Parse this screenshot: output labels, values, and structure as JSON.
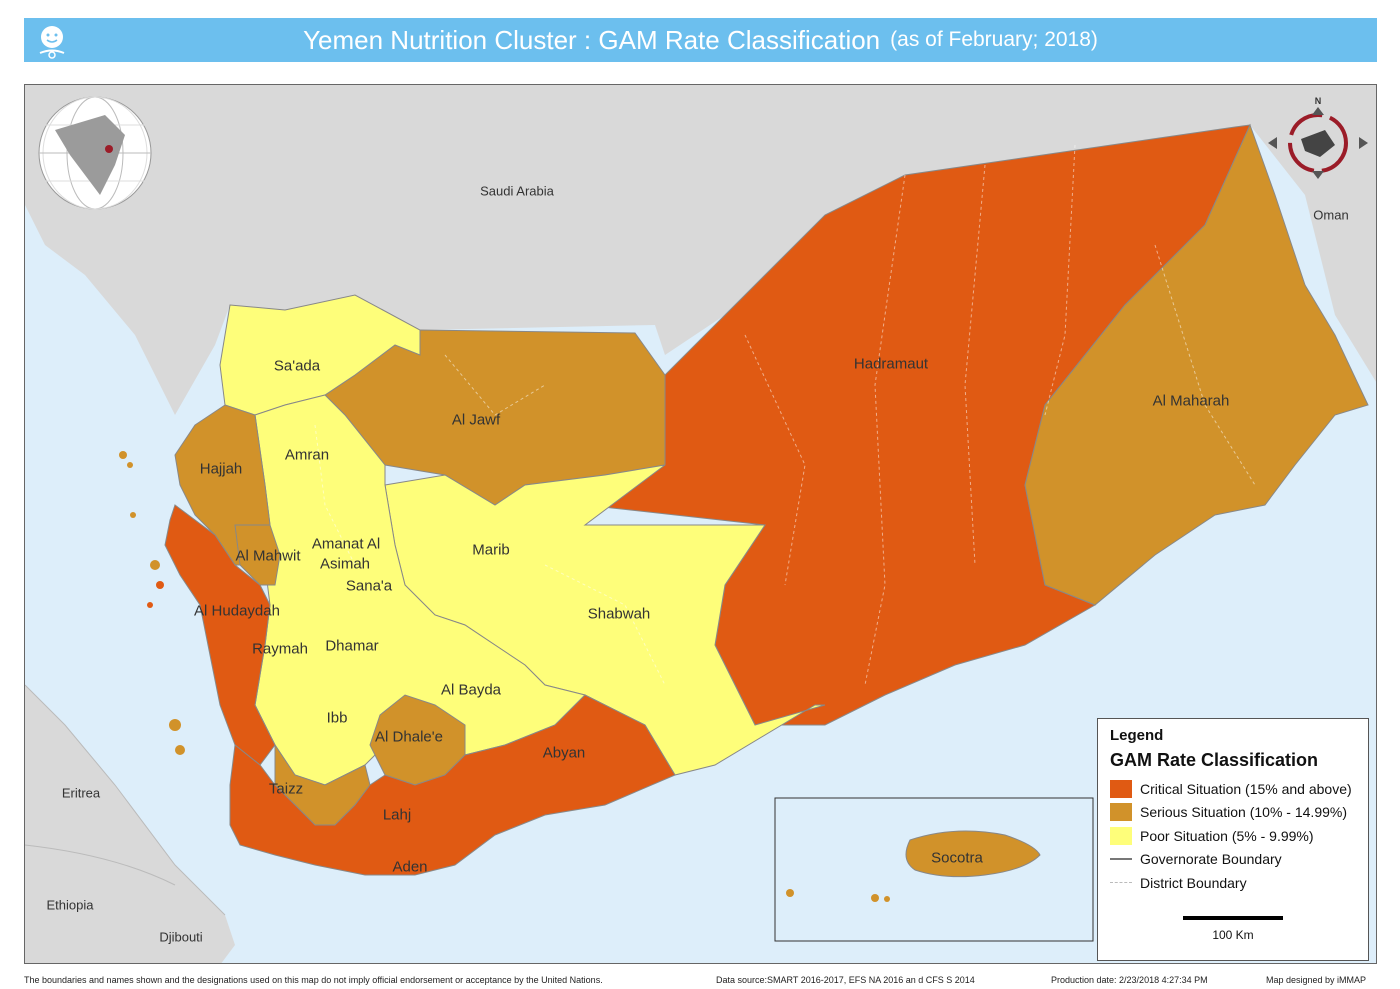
{
  "header": {
    "title": "Yemen Nutrition Cluster : GAM Rate Classification",
    "subtitle": "(as of February; 2018)"
  },
  "colors": {
    "critical": "#e05a13",
    "serious": "#d1922a",
    "poor": "#fefe7a",
    "land": "#d9d9d9",
    "sea": "#ddeefa",
    "title_bar": "#6cbfee"
  },
  "map": {
    "countries": {
      "saudi": "Saudi Arabia",
      "oman": "Oman",
      "eritrea": "Eritrea",
      "ethiopia": "Ethiopia",
      "djibouti": "Djibouti"
    },
    "compass": "N",
    "governorates": [
      {
        "name": "Sa'ada",
        "class": "poor"
      },
      {
        "name": "Al Jawf",
        "class": "serious"
      },
      {
        "name": "Hadramaut",
        "class": "critical"
      },
      {
        "name": "Al Maharah",
        "class": "serious"
      },
      {
        "name": "Hajjah",
        "class": "serious"
      },
      {
        "name": "Amran",
        "class": "poor"
      },
      {
        "name": "Marib",
        "class": "poor"
      },
      {
        "name": "Al Mahwit",
        "class": "serious"
      },
      {
        "name": "Amanat Al",
        "class": "poor"
      },
      {
        "name": "Asimah",
        "class": "poor"
      },
      {
        "name": "Sana'a",
        "class": "poor"
      },
      {
        "name": "Shabwah",
        "class": "poor"
      },
      {
        "name": "Al Hudaydah",
        "class": "critical"
      },
      {
        "name": "Raymah",
        "class": "poor"
      },
      {
        "name": "Dhamar",
        "class": "poor"
      },
      {
        "name": "Al Bayda",
        "class": "poor"
      },
      {
        "name": "Ibb",
        "class": "poor"
      },
      {
        "name": "Al Dhale'e",
        "class": "serious"
      },
      {
        "name": "Abyan",
        "class": "critical"
      },
      {
        "name": "Taizz",
        "class": "serious"
      },
      {
        "name": "Lahj",
        "class": "critical"
      },
      {
        "name": "Aden",
        "class": "critical"
      },
      {
        "name": "Socotra",
        "class": "serious"
      }
    ]
  },
  "legend": {
    "title": "Legend",
    "subtitle": "GAM Rate Classification",
    "items": [
      {
        "label": "Critical Situation (15% and above)",
        "color": "#e05a13"
      },
      {
        "label": "Serious Situation (10% - 14.99%)",
        "color": "#d1922a"
      },
      {
        "label": "Poor Situation (5% - 9.99%)",
        "color": "#fefe7a"
      }
    ],
    "boundaries": [
      {
        "label": "Governorate Boundary"
      },
      {
        "label": "District Boundary"
      }
    ],
    "scale_label": "100 Km"
  },
  "footer": {
    "disclaimer": "The boundaries and names shown and the designations used on this map do not imply official endorsement or acceptance by the United Nations.",
    "data_source": "Data source:SMART 2016-2017, EFS NA 2016 an d CFS S 2014",
    "production_date": "Production date: 2/23/2018 4:27:34 PM",
    "designed_by": "Map designed by iMMAP"
  }
}
